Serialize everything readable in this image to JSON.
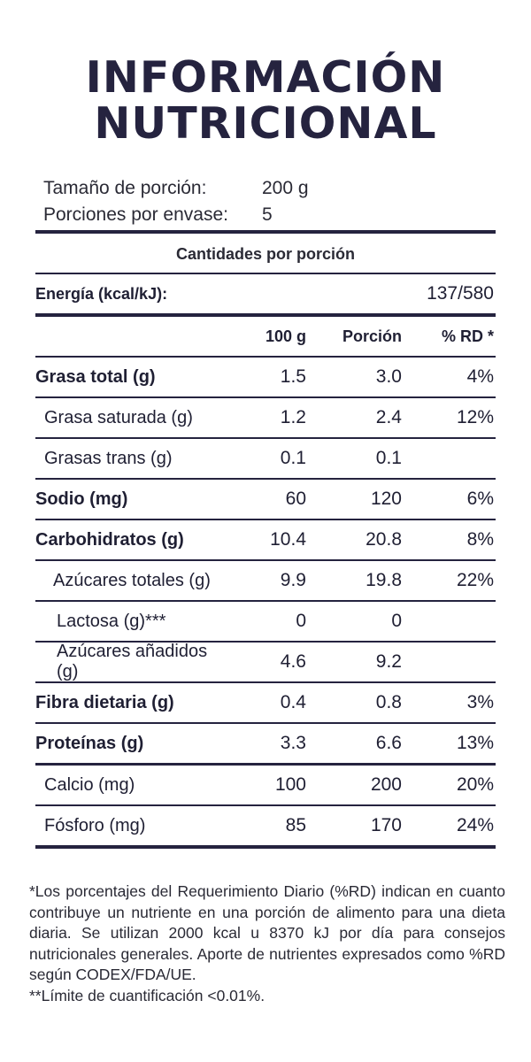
{
  "title": {
    "line1": "INFORMACIÓN",
    "line2": "NUTRICIONAL"
  },
  "serving": {
    "size_label": "Tamaño de porción:",
    "size_value": "200 g",
    "per_container_label": "Porciones por envase:",
    "per_container_value": "5"
  },
  "subheader": "Cantidades por porción",
  "energy": {
    "label": "Energía (kcal/kJ):",
    "value": "137/580"
  },
  "columns": {
    "per100": "100 g",
    "portion": "Porción",
    "rd": "% RD *"
  },
  "rows": [
    {
      "name": "Grasa total (g)",
      "per100": "1.5",
      "portion": "3.0",
      "rd": "4%"
    },
    {
      "name": "Grasa saturada (g)",
      "per100": "1.2",
      "portion": "2.4",
      "rd": "12%"
    },
    {
      "name": "Grasas trans (g)",
      "per100": "0.1",
      "portion": "0.1",
      "rd": ""
    },
    {
      "name": "Sodio (mg)",
      "per100": "60",
      "portion": "120",
      "rd": "6%"
    },
    {
      "name": "Carbohidratos (g)",
      "per100": "10.4",
      "portion": "20.8",
      "rd": "8%"
    },
    {
      "name": "Azúcares totales (g)",
      "per100": "9.9",
      "portion": "19.8",
      "rd": "22%"
    },
    {
      "name": "Lactosa (g)***",
      "per100": "0",
      "portion": "0",
      "rd": ""
    },
    {
      "name": "Azúcares añadidos (g)",
      "per100": "4.6",
      "portion": "9.2",
      "rd": ""
    },
    {
      "name": "Fibra dietaria (g)",
      "per100": "0.4",
      "portion": "0.8",
      "rd": "3%"
    },
    {
      "name": "Proteínas (g)",
      "per100": "3.3",
      "portion": "6.6",
      "rd": "13%"
    },
    {
      "name": "Calcio (mg)",
      "per100": "100",
      "portion": "200",
      "rd": "20%"
    },
    {
      "name": "Fósforo (mg)",
      "per100": "85",
      "portion": "170",
      "rd": "24%"
    }
  ],
  "footnotes": {
    "rd_note": "*Los porcentajes del Requerimiento Diario (%RD) indican en cuanto contribuye un nutriente en una porción de alimento para una dieta diaria. Se utilizan 2000 kcal u 8370 kJ por día para consejos nutricionales generales. Aporte de nutrientes expresados como %RD según CODEX/FDA/UE.",
    "limit_note": "**Límite de cuantificación <0.01%."
  },
  "colors": {
    "ink": "#25233f",
    "text": "#2a2a35",
    "background": "#ffffff"
  }
}
